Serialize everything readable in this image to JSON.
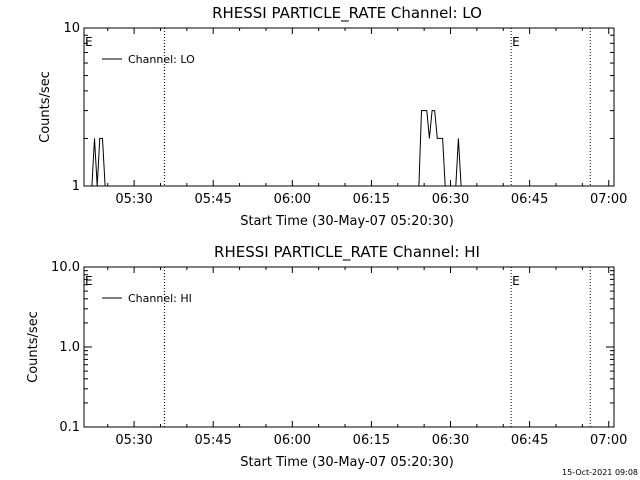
{
  "chart_data": [
    {
      "type": "line",
      "title": "RHESSI PARTICLE_RATE Channel: LO",
      "xlabel": "Start Time (30-May-07 05:20:30)",
      "ylabel": "Counts/sec",
      "yscale": "log",
      "ylim": [
        1,
        10
      ],
      "xlim": [
        "05:20:30",
        "07:01:00"
      ],
      "x_ticks": [
        "05:30",
        "05:45",
        "06:00",
        "06:15",
        "06:30",
        "06:45",
        "07:00"
      ],
      "y_ticks": [
        "1",
        "10"
      ],
      "legend": {
        "placement": "top-left",
        "entries": [
          "Channel: LO"
        ]
      },
      "event_lines": [
        "05:35:45",
        "06:41:30",
        "06:56:30"
      ],
      "event_markers": [
        {
          "label": "E",
          "x": "05:20:30"
        },
        {
          "label": "E",
          "x": "06:41:30"
        }
      ],
      "series": [
        {
          "name": "Channel: LO",
          "color": "#000000",
          "points": [
            [
              "05:22:00",
              1
            ],
            [
              "05:22:30",
              2
            ],
            [
              "05:23:00",
              1
            ],
            [
              "05:23:30",
              2
            ],
            [
              "05:24:00",
              2
            ],
            [
              "05:24:30",
              1
            ],
            [
              "05:25:00",
              1
            ],
            [
              "05:26:00",
              1
            ],
            [
              "06:24:00",
              1
            ],
            [
              "06:24:30",
              3
            ],
            [
              "06:25:30",
              3
            ],
            [
              "06:26:00",
              2
            ],
            [
              "06:26:30",
              3
            ],
            [
              "06:27:00",
              3
            ],
            [
              "06:27:30",
              2
            ],
            [
              "06:28:00",
              2
            ],
            [
              "06:28:30",
              2
            ],
            [
              "06:29:00",
              1
            ],
            [
              "06:31:00",
              1
            ],
            [
              "06:31:30",
              2
            ],
            [
              "06:32:00",
              1
            ],
            [
              "06:32:30",
              1
            ]
          ]
        }
      ]
    },
    {
      "type": "line",
      "title": "RHESSI PARTICLE_RATE Channel: HI",
      "xlabel": "Start Time (30-May-07 05:20:30)",
      "ylabel": "Counts/sec",
      "yscale": "log",
      "ylim": [
        0.1,
        10
      ],
      "xlim": [
        "05:20:30",
        "07:01:00"
      ],
      "x_ticks": [
        "05:30",
        "05:45",
        "06:00",
        "06:15",
        "06:30",
        "06:45",
        "07:00"
      ],
      "y_ticks": [
        "0.1",
        "1.0",
        "10.0"
      ],
      "legend": {
        "placement": "top-left",
        "entries": [
          "Channel: HI"
        ]
      },
      "event_lines": [
        "05:35:45",
        "06:41:30",
        "06:56:30"
      ],
      "event_markers": [
        {
          "label": "E",
          "x": "05:20:30"
        },
        {
          "label": "E",
          "x": "06:41:30"
        }
      ],
      "series": [
        {
          "name": "Channel: HI",
          "color": "#000000",
          "points": []
        }
      ]
    }
  ],
  "footer": {
    "timestamp": "15-Oct-2021 09:08"
  }
}
